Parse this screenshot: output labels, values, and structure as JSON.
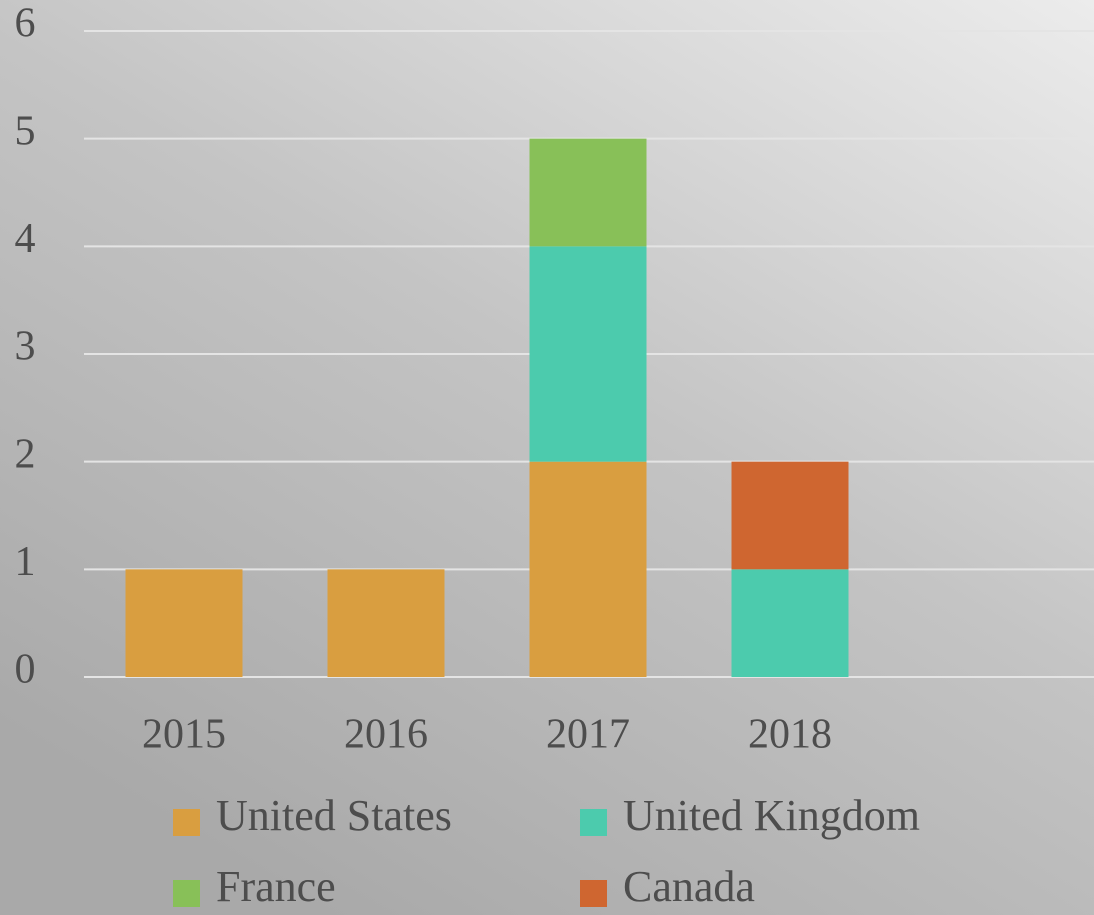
{
  "chart_data": {
    "type": "stacked_bar",
    "categories": [
      "2015",
      "2016",
      "2017",
      "2018",
      null
    ],
    "series": [
      {
        "name": "United States",
        "color": "#d99e40",
        "values": [
          1,
          1,
          2,
          0,
          null
        ]
      },
      {
        "name": "United Kingdom",
        "color": "#4ccbad",
        "values": [
          0,
          0,
          2,
          1,
          null
        ]
      },
      {
        "name": "France",
        "color": "#88c058",
        "values": [
          0,
          0,
          1,
          0,
          null
        ]
      },
      {
        "name": "Canada",
        "color": "#cf6630",
        "values": [
          0,
          0,
          0,
          1,
          null
        ]
      }
    ],
    "ylim": [
      0,
      6
    ],
    "yticks": [
      0,
      1,
      2,
      3,
      4,
      5,
      6
    ],
    "grid": true,
    "legend": "bottom"
  }
}
